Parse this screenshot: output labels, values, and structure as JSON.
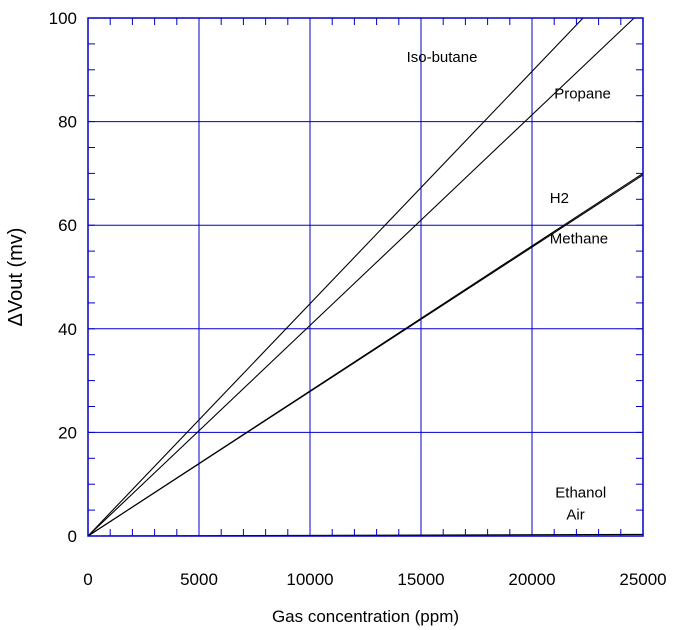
{
  "chart_data": {
    "type": "line",
    "title": "",
    "xlabel": "Gas concentration (ppm)",
    "ylabel": "ΔVout (mv)",
    "xlim": [
      0,
      25000
    ],
    "ylim": [
      0,
      100
    ],
    "xticks": [
      0,
      5000,
      10000,
      15000,
      20000,
      25000
    ],
    "yticks": [
      0,
      20,
      40,
      60,
      80,
      100
    ],
    "grid": true,
    "grid_color": "#0000cc",
    "line_color": "#000000",
    "series": [
      {
        "name": "Iso-butane",
        "x": [
          0,
          22300
        ],
        "y": [
          0,
          100
        ]
      },
      {
        "name": "Propane",
        "x": [
          0,
          24600
        ],
        "y": [
          0,
          100
        ]
      },
      {
        "name": "H2",
        "x": [
          0,
          25000
        ],
        "y": [
          0,
          70
        ]
      },
      {
        "name": "Methane",
        "x": [
          0,
          25000
        ],
        "y": [
          0,
          69.7
        ]
      },
      {
        "name": "Ethanol",
        "x": [
          0,
          25000
        ],
        "y": [
          0,
          0.3
        ]
      },
      {
        "name": "Air",
        "x": [
          0,
          25000
        ],
        "y": [
          0,
          0
        ]
      }
    ],
    "annotations": [
      {
        "text": "Iso-butane",
        "x": 14350,
        "y": 91.5
      },
      {
        "text": "Propane",
        "x": 21000,
        "y": 84.5
      },
      {
        "text": "H2",
        "x": 20800,
        "y": 64.3
      },
      {
        "text": "Methane",
        "x": 20800,
        "y": 56.5
      },
      {
        "text": "Ethanol",
        "x": 21050,
        "y": 7.4
      },
      {
        "text": "Air",
        "x": 21550,
        "y": 3.2
      }
    ]
  }
}
